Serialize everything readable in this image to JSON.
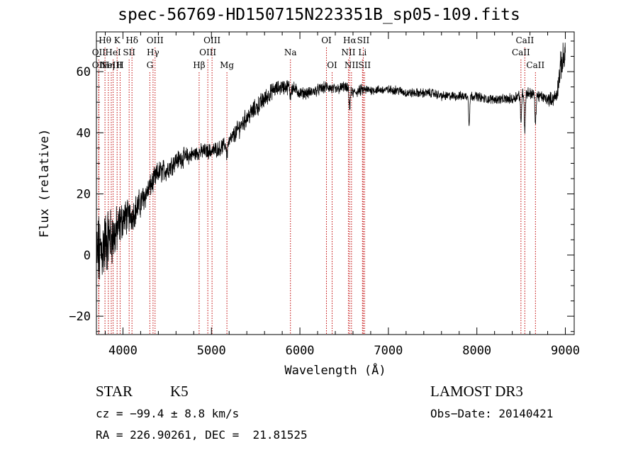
{
  "chart_data": {
    "type": "line",
    "title": "spec-56769-HD150715N223351B_sp05-109.fits",
    "xlabel": "Wavelength (Å)",
    "ylabel": "Flux (relative)",
    "xlim": [
      3700,
      9100
    ],
    "ylim": [
      -26,
      73
    ],
    "xticks": [
      4000,
      5000,
      6000,
      7000,
      8000,
      9000
    ],
    "yticks": [
      -20,
      0,
      20,
      40,
      60
    ],
    "xtick_labels": [
      "4000",
      "5000",
      "6000",
      "7000",
      "8000",
      "9000"
    ],
    "ytick_labels": [
      "−20",
      "0",
      "20",
      "40",
      "60"
    ],
    "x_minor_step": 200,
    "y_minor_step": 5,
    "series": [
      {
        "name": "flux",
        "x": [
          3700,
          3750,
          3800,
          3850,
          3900,
          3950,
          4000,
          4100,
          4200,
          4300,
          4400,
          4500,
          4600,
          4700,
          4800,
          4900,
          5000,
          5100,
          5200,
          5300,
          5400,
          5500,
          5600,
          5700,
          5800,
          5900,
          6000,
          6100,
          6200,
          6300,
          6400,
          6500,
          6600,
          6700,
          6800,
          6900,
          7000,
          7100,
          7200,
          7300,
          7400,
          7500,
          7600,
          7700,
          7800,
          7900,
          8000,
          8100,
          8200,
          8300,
          8400,
          8450,
          8500,
          8600,
          8700,
          8800,
          8850,
          8900,
          8950,
          9000
        ],
        "y": [
          0,
          1,
          4,
          6,
          6,
          9,
          12,
          13,
          17,
          22,
          27,
          28,
          31,
          32,
          33,
          34,
          34,
          35,
          37,
          41,
          45,
          48,
          51,
          54,
          55,
          55,
          53,
          53,
          54,
          55,
          54,
          55,
          53,
          54,
          54,
          54,
          54,
          54,
          53,
          53,
          53,
          53,
          52,
          52,
          52,
          52,
          52,
          51,
          51,
          51,
          51,
          52,
          53,
          53,
          52,
          51,
          51,
          52,
          62,
          66
        ],
        "noise": [
          10,
          10,
          9,
          8,
          7,
          6,
          5,
          4,
          4,
          3,
          3,
          3,
          2.5,
          2.5,
          2,
          2,
          2,
          2,
          2,
          2.5,
          2.5,
          2.5,
          2.5,
          2,
          2,
          2,
          1.5,
          1.5,
          1.5,
          1.5,
          1.5,
          1.5,
          1.5,
          1.5,
          1.2,
          1.2,
          1.2,
          1.2,
          1.2,
          1.2,
          1.2,
          1.2,
          1.2,
          1.2,
          1.2,
          1.2,
          1.2,
          1.2,
          1.2,
          1.2,
          1.5,
          1.5,
          1.5,
          1.5,
          1.5,
          1.5,
          2,
          2,
          4,
          4
        ]
      }
    ],
    "absorption_dips": [
      {
        "x": 6563,
        "depth": 6
      },
      {
        "x": 7913,
        "depth": 9
      },
      {
        "x": 8498,
        "depth": 10
      },
      {
        "x": 8542,
        "depth": 12
      },
      {
        "x": 8662,
        "depth": 10
      },
      {
        "x": 5175,
        "depth": 4
      },
      {
        "x": 5893,
        "depth": 3
      }
    ],
    "line_markers": [
      {
        "x": 3797,
        "label": "Hθ",
        "row": 0
      },
      {
        "x": 3727,
        "label": "OII",
        "row": 1
      },
      {
        "x": 3727,
        "label": "OII",
        "row": 2
      },
      {
        "x": 3835,
        "label": "Hη",
        "row": 2
      },
      {
        "x": 3868,
        "label": "NeIII",
        "row": 2
      },
      {
        "x": 3889,
        "label": "HeI",
        "row": 1
      },
      {
        "x": 3934,
        "label": "K",
        "row": 0
      },
      {
        "x": 3968,
        "label": "H",
        "row": 2
      },
      {
        "x": 4070,
        "label": "SII",
        "row": 1
      },
      {
        "x": 4102,
        "label": "Hδ",
        "row": 0
      },
      {
        "x": 4304,
        "label": "G",
        "row": 2
      },
      {
        "x": 4340,
        "label": "Hγ",
        "row": 1
      },
      {
        "x": 4363,
        "label": "OIII",
        "row": 0
      },
      {
        "x": 4861,
        "label": "Hβ",
        "row": 2
      },
      {
        "x": 4959,
        "label": "OIII",
        "row": 1
      },
      {
        "x": 5007,
        "label": "OIII",
        "row": 0
      },
      {
        "x": 5175,
        "label": "Mg",
        "row": 2
      },
      {
        "x": 5893,
        "label": "Na",
        "row": 1
      },
      {
        "x": 6300,
        "label": "OI",
        "row": 0
      },
      {
        "x": 6364,
        "label": "OI",
        "row": 2
      },
      {
        "x": 6548,
        "label": "NII",
        "row": 1
      },
      {
        "x": 6563,
        "label": "Hα",
        "row": 0
      },
      {
        "x": 6583,
        "label": "NII",
        "row": 2
      },
      {
        "x": 6707,
        "label": "Li",
        "row": 1
      },
      {
        "x": 6716,
        "label": "SII",
        "row": 0
      },
      {
        "x": 6731,
        "label": "SII",
        "row": 2
      },
      {
        "x": 8498,
        "label": "CaII",
        "row": 1
      },
      {
        "x": 8542,
        "label": "CaII",
        "row": 0
      },
      {
        "x": 8662,
        "label": "CaII",
        "row": 2
      }
    ]
  },
  "info": {
    "obj_class": "STAR",
    "subclass": "K5",
    "cz": "cz = −99.4 ± 8.8 km/s",
    "radec": "RA = 226.90261, DEC =  21.81525",
    "survey": "LAMOST DR3",
    "obs_date": "Obs−Date: 20140421"
  },
  "colors": {
    "axis": "#000000",
    "spectrum": "#000000",
    "line_marker": "#c00000"
  }
}
